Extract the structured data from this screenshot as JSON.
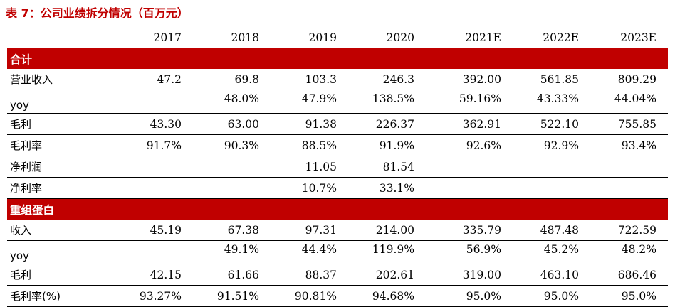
{
  "title": "表 7：公司业绩拆分情况（百万元）",
  "columns": [
    "2017",
    "2018",
    "2019",
    "2020",
    "2021E",
    "2022E",
    "2023E"
  ],
  "sections": [
    {
      "name": "合计",
      "rows": [
        {
          "label": "营业收入",
          "values": [
            "47.2",
            "69.8",
            "103.3",
            "246.3",
            "392.00",
            "561.85",
            "809.29"
          ]
        },
        {
          "label": "yoy",
          "values": [
            "",
            "48.0%",
            "47.9%",
            "138.5%",
            "59.16%",
            "43.33%",
            "44.04%"
          ]
        },
        {
          "label": "毛利",
          "values": [
            "43.30",
            "63.00",
            "91.38",
            "226.37",
            "362.91",
            "522.10",
            "755.85"
          ]
        },
        {
          "label": "毛利率",
          "values": [
            "91.7%",
            "90.3%",
            "88.5%",
            "91.9%",
            "92.6%",
            "92.9%",
            "93.4%"
          ]
        },
        {
          "label": "净利润",
          "values": [
            "",
            "",
            "11.05",
            "81.54",
            "",
            "",
            ""
          ]
        },
        {
          "label": "净利率",
          "values": [
            "",
            "",
            "10.7%",
            "33.1%",
            "",
            "",
            ""
          ]
        }
      ]
    },
    {
      "name": "重组蛋白",
      "rows": [
        {
          "label": "收入",
          "values": [
            "45.19",
            "67.38",
            "97.31",
            "214.00",
            "335.79",
            "487.48",
            "722.59"
          ]
        },
        {
          "label": "yoy",
          "values": [
            "",
            "49.1%",
            "44.4%",
            "119.9%",
            "56.9%",
            "45.2%",
            "48.2%"
          ]
        },
        {
          "label": "毛利",
          "values": [
            "42.15",
            "61.66",
            "88.37",
            "202.61",
            "319.00",
            "463.10",
            "686.46"
          ]
        },
        {
          "label": "毛利率(%)",
          "values": [
            "93.27%",
            "91.51%",
            "90.81%",
            "94.68%",
            "95.0%",
            "95.0%",
            "95.0%"
          ]
        }
      ]
    }
  ],
  "colors": {
    "accent": "#c00000",
    "text": "#000000",
    "section_text": "#ffffff"
  }
}
